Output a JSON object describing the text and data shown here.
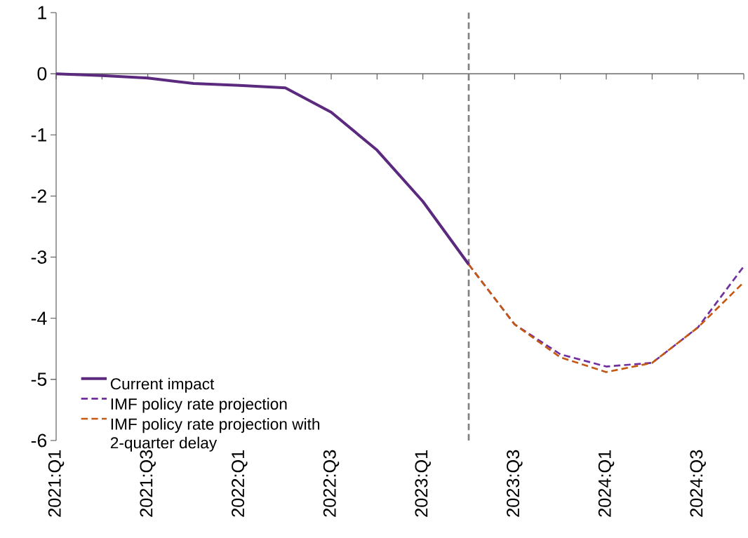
{
  "chart_data": {
    "type": "line",
    "categories": [
      "2021:Q1",
      null,
      "2021:Q3",
      null,
      "2022:Q1",
      null,
      "2022:Q3",
      null,
      "2023:Q1",
      null,
      "2023:Q3",
      null,
      "2024:Q1",
      null,
      "2024:Q3",
      null
    ],
    "series": [
      {
        "name": "Current impact",
        "color": "#5b2a7e",
        "line_style": "solid",
        "values": [
          0,
          -0.03,
          -0.07,
          -0.16,
          -0.19,
          -0.23,
          -0.63,
          -1.25,
          -2.09,
          -3.12,
          null,
          null,
          null,
          null,
          null,
          null
        ]
      },
      {
        "name": "IMF policy rate projection",
        "color": "#7030a0",
        "line_style": "dashed",
        "values": [
          null,
          null,
          null,
          null,
          null,
          null,
          null,
          null,
          null,
          -3.12,
          -4.1,
          -4.59,
          -4.79,
          -4.73,
          -4.15,
          -3.15
        ]
      },
      {
        "name": "IMF policy rate projection with 2-quarter delay",
        "color": "#c65911",
        "line_style": "dashed",
        "values": [
          null,
          null,
          null,
          null,
          null,
          null,
          null,
          null,
          null,
          -3.12,
          -4.1,
          -4.64,
          -4.88,
          -4.73,
          -4.15,
          -3.41
        ]
      }
    ],
    "ylim": [
      -6,
      1
    ],
    "yticks": [
      -6,
      -5,
      -4,
      -3,
      -2,
      -1,
      0,
      1
    ],
    "grid": false,
    "legend": "bottom left",
    "marker": "none"
  }
}
